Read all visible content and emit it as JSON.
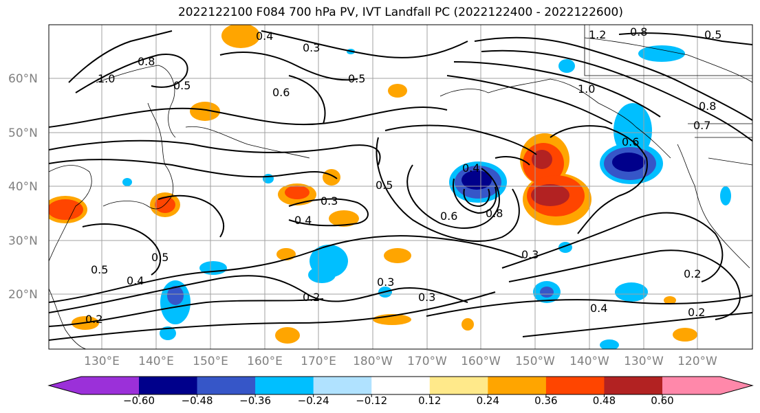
{
  "title": "2022122100 F084 700 hPa PV, IVT Landfall PC (2022122400 - 2022122600)",
  "lat_labels": [
    "60°N",
    "50°N",
    "40°N",
    "30°N",
    "20°N"
  ],
  "lon_labels": [
    "130°E",
    "140°E",
    "150°E",
    "160°E",
    "170°E",
    "180°W",
    "170°W",
    "160°W",
    "150°W",
    "140°W",
    "130°W",
    "120°W"
  ],
  "colorbar": {
    "ticks": [
      "−0.60",
      "−0.48",
      "−0.36",
      "−0.24",
      "−0.12",
      "0.12",
      "0.24",
      "0.36",
      "0.48",
      "0.60"
    ],
    "colors": [
      "#9b30d9",
      "#00008b",
      "#3656c8",
      "#00bfff",
      "#b0e2ff",
      "#ffffff",
      "#ffe98a",
      "#ffa500",
      "#ff4500",
      "#b22222",
      "#ff88aa"
    ]
  },
  "contour_labels": [
    "0.4",
    "0.3",
    "0.5",
    "1.2",
    "0.8",
    "0.5",
    "0.8",
    "1.0",
    "0.5",
    "0.6",
    "1.0",
    "0.8",
    "0.7",
    "0.6",
    "0.4",
    "0.5",
    "0.6",
    "0.8",
    "0.3",
    "0.4",
    "0.5",
    "0.4",
    "0.5",
    "0.2",
    "0.3",
    "0.3",
    "0.2",
    "0.3",
    "0.4",
    "0.2",
    "0.2"
  ]
}
